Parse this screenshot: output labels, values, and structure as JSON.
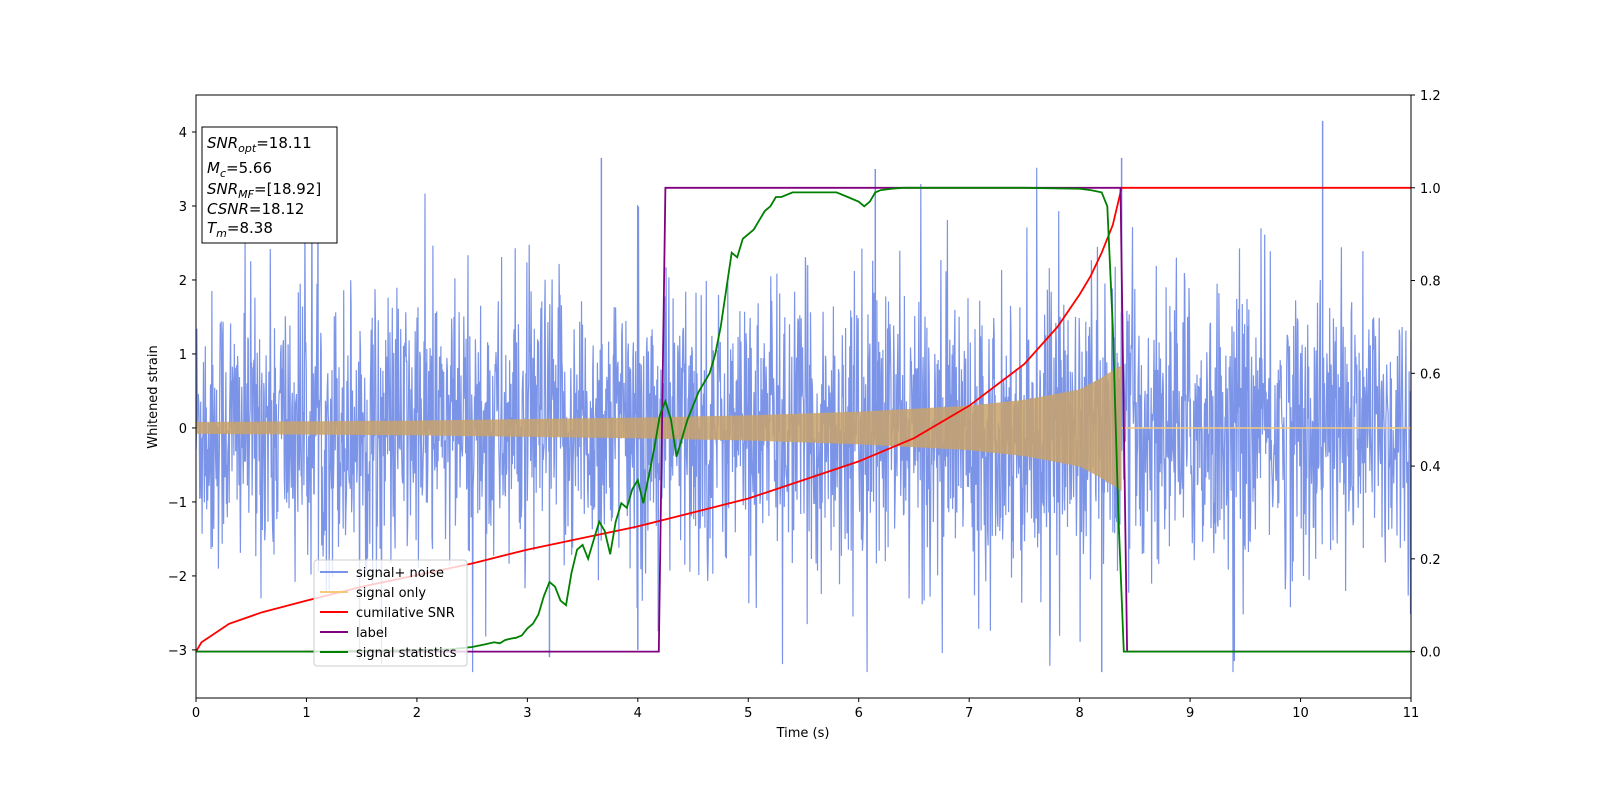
{
  "chart_data": {
    "type": "line",
    "xlabel": "Time (s)",
    "ylabel": "Whitened strain",
    "xlim": [
      0,
      11
    ],
    "ylim_left": [
      -3.65,
      4.5
    ],
    "ylim_right": [
      -0.1,
      1.2
    ],
    "x_ticks": [
      0,
      1,
      2,
      3,
      4,
      5,
      6,
      7,
      8,
      9,
      10,
      11
    ],
    "y_ticks_left": [
      -3,
      -2,
      -1,
      0,
      1,
      2,
      3,
      4
    ],
    "y_ticks_right": [
      0.0,
      0.2,
      0.4,
      0.6,
      0.8,
      1.0,
      1.2
    ],
    "legend_position": "lower-left",
    "info_box": {
      "snr_opt": {
        "base": "SNR",
        "sub": "opt",
        "value": "=18.11"
      },
      "mc": {
        "base": "M",
        "sub": "c",
        "value": "=5.66"
      },
      "snr_mf": {
        "base": "SNR",
        "sub": "MF",
        "value": "=[18.92]"
      },
      "csnr": {
        "base": "CSNR",
        "sub": "",
        "value": "=18.12"
      },
      "tm": {
        "base": "T",
        "sub": "m",
        "value": "=8.38"
      }
    },
    "series": [
      {
        "name": "signal+ noise",
        "color": "#7b94e8",
        "axis": "left",
        "description_range": {
          "t_start": 0,
          "t_end": 11,
          "typical_amplitude": 1.6,
          "peak_max": 4.15,
          "peak_min": -3.3
        }
      },
      {
        "name": "signal only",
        "color": "#f5c87a",
        "axis": "left",
        "envelope": [
          [
            0,
            0.08
          ],
          [
            2,
            0.1
          ],
          [
            4,
            0.14
          ],
          [
            5,
            0.17
          ],
          [
            6,
            0.22
          ],
          [
            7,
            0.3
          ],
          [
            7.5,
            0.38
          ],
          [
            8,
            0.52
          ],
          [
            8.2,
            0.68
          ],
          [
            8.38,
            0.85
          ]
        ],
        "end_time": 8.38
      },
      {
        "name": "cumilative SNR",
        "color": "#ff0000",
        "axis": "right",
        "x": [
          0,
          0.05,
          0.3,
          0.6,
          1,
          1.5,
          2,
          2.5,
          3,
          3.5,
          4,
          4.5,
          5,
          5.5,
          6,
          6.5,
          7,
          7.5,
          7.8,
          8,
          8.1,
          8.2,
          8.3,
          8.38,
          8.4,
          11
        ],
        "values": [
          0,
          0.02,
          0.06,
          0.085,
          0.11,
          0.14,
          0.165,
          0.19,
          0.22,
          0.245,
          0.27,
          0.3,
          0.33,
          0.37,
          0.41,
          0.46,
          0.53,
          0.62,
          0.7,
          0.77,
          0.81,
          0.86,
          0.92,
          1.0,
          1.0,
          1.0
        ]
      },
      {
        "name": "label",
        "color": "#800080",
        "axis": "right",
        "x": [
          0,
          4.19,
          4.25,
          8.37,
          8.43,
          11
        ],
        "values": [
          0,
          0,
          1,
          1,
          0,
          0
        ]
      },
      {
        "name": "signal statistics",
        "color": "#008000",
        "axis": "right",
        "x": [
          0,
          1,
          2,
          2.3,
          2.5,
          2.6,
          2.7,
          2.75,
          2.8,
          2.85,
          2.9,
          2.95,
          3.0,
          3.05,
          3.1,
          3.15,
          3.2,
          3.25,
          3.3,
          3.35,
          3.4,
          3.45,
          3.5,
          3.55,
          3.6,
          3.65,
          3.7,
          3.75,
          3.8,
          3.85,
          3.9,
          3.95,
          4.0,
          4.05,
          4.1,
          4.15,
          4.2,
          4.25,
          4.3,
          4.35,
          4.4,
          4.45,
          4.5,
          4.55,
          4.6,
          4.65,
          4.7,
          4.75,
          4.8,
          4.85,
          4.9,
          4.95,
          5.0,
          5.05,
          5.1,
          5.15,
          5.2,
          5.25,
          5.3,
          5.4,
          5.5,
          5.6,
          5.7,
          5.8,
          5.9,
          6.0,
          6.05,
          6.1,
          6.15,
          6.2,
          6.3,
          6.4,
          6.5,
          6.7,
          7.0,
          7.5,
          8.0,
          8.1,
          8.2,
          8.25,
          8.3,
          8.35,
          8.4,
          8.45,
          8.5,
          9,
          11
        ],
        "values": [
          0,
          0,
          0.003,
          0.005,
          0.01,
          0.015,
          0.02,
          0.018,
          0.025,
          0.028,
          0.03,
          0.035,
          0.05,
          0.06,
          0.08,
          0.12,
          0.15,
          0.14,
          0.11,
          0.1,
          0.17,
          0.22,
          0.23,
          0.2,
          0.24,
          0.28,
          0.26,
          0.21,
          0.28,
          0.32,
          0.31,
          0.35,
          0.37,
          0.32,
          0.38,
          0.44,
          0.51,
          0.54,
          0.5,
          0.42,
          0.46,
          0.5,
          0.53,
          0.56,
          0.58,
          0.6,
          0.64,
          0.7,
          0.78,
          0.86,
          0.85,
          0.89,
          0.9,
          0.91,
          0.93,
          0.95,
          0.96,
          0.98,
          0.98,
          0.99,
          0.99,
          0.99,
          0.99,
          0.99,
          0.98,
          0.97,
          0.96,
          0.97,
          0.99,
          0.995,
          0.998,
          1.0,
          1.0,
          1.0,
          1.0,
          1.0,
          0.998,
          0.995,
          0.99,
          0.96,
          0.7,
          0.3,
          0.0,
          0.0,
          0.0,
          0.0,
          0.0
        ]
      }
    ]
  }
}
